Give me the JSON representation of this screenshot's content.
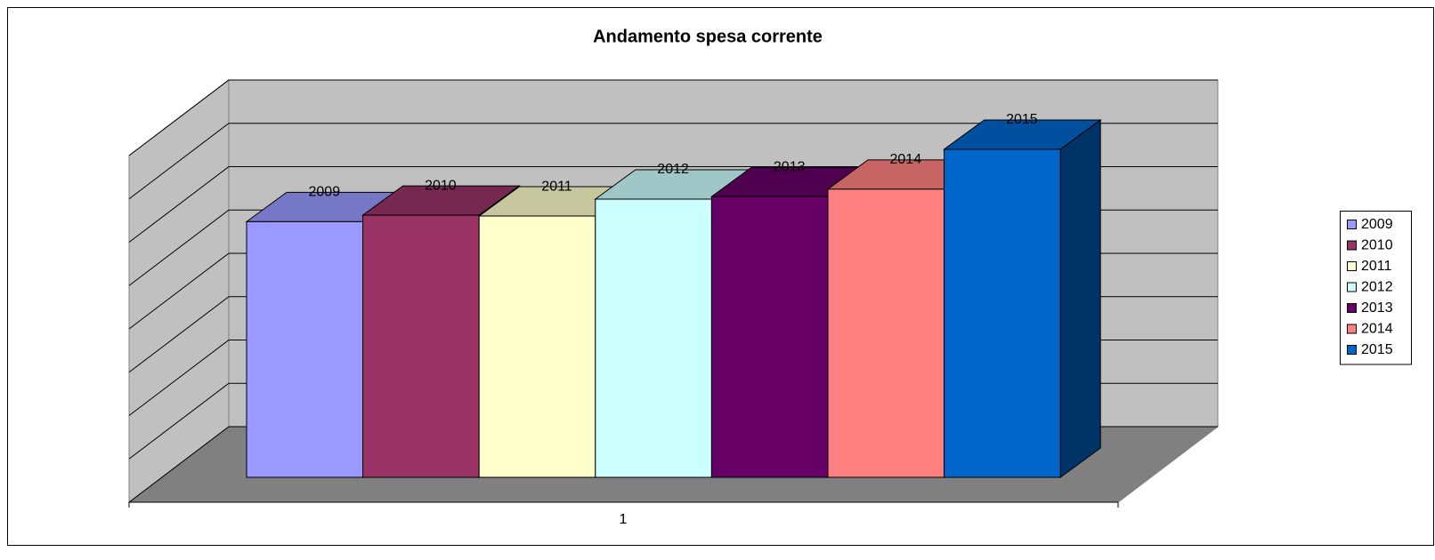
{
  "chart_data": {
    "type": "bar3d",
    "title": "Andamento spesa corrente",
    "categories": [
      "1"
    ],
    "series": [
      {
        "name": "2009",
        "color": "#9999ff",
        "values": [
          5.9
        ]
      },
      {
        "name": "2010",
        "color": "#993366",
        "values": [
          6.05
        ]
      },
      {
        "name": "2011",
        "color": "#ffffcc",
        "values": [
          6.03
        ]
      },
      {
        "name": "2012",
        "color": "#ccffff",
        "values": [
          6.42
        ]
      },
      {
        "name": "2013",
        "color": "#660066",
        "values": [
          6.48
        ]
      },
      {
        "name": "2014",
        "color": "#ff8080",
        "values": [
          6.65
        ]
      },
      {
        "name": "2015",
        "color": "#0066cc",
        "values": [
          7.57
        ]
      }
    ],
    "ylim": [
      0,
      8
    ],
    "yticks": [
      0,
      1,
      2,
      3,
      4,
      5,
      6,
      7,
      8
    ],
    "grid": true,
    "legend": "right"
  }
}
